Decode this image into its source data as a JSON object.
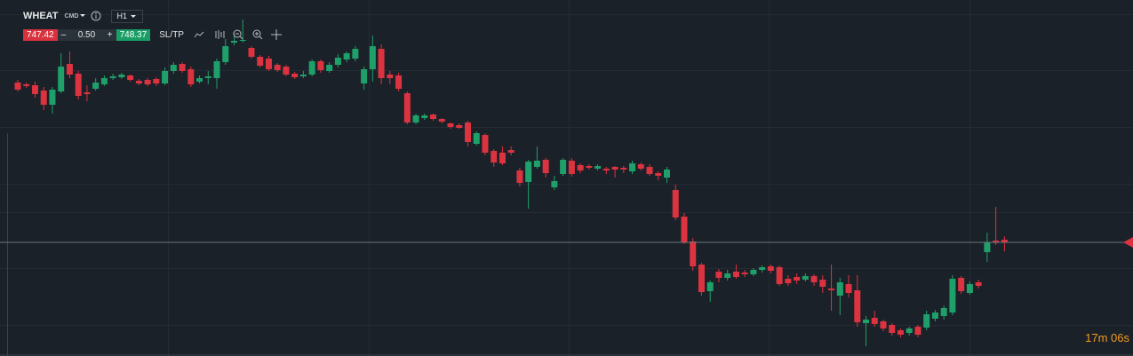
{
  "toolbar": {
    "symbol": "WHEAT",
    "symbol_type": "CMD",
    "timeframe": "H1",
    "sell_price": "747.42",
    "volume": "0.50",
    "buy_price": "748.37",
    "sltp": "SL/TP"
  },
  "countdown": {
    "minutes": "17m",
    "seconds": "06s"
  },
  "chart_data": {
    "type": "candlestick",
    "up_color": "#1fa06a",
    "down_color": "#dc3340",
    "ylim": [
      735.1,
      775.2
    ],
    "price_line": 747.9,
    "open": [
      765.9,
      765.7,
      765.6,
      765.0,
      763.4,
      764.9,
      768.0,
      766.9,
      764.8,
      765.2,
      765.7,
      766.4,
      766.5,
      766.7,
      766.1,
      766.2,
      766.3,
      765.8,
      767.2,
      768.0,
      767.4,
      766.0,
      766.4,
      766.4,
      768.2,
      770.4,
      770.6,
      769.8,
      768.8,
      768.6,
      767.9,
      767.7,
      766.9,
      766.6,
      766.8,
      768.3,
      767.2,
      767.9,
      768.5,
      768.6,
      765.8,
      767.4,
      769.7,
      766.8,
      766.7,
      764.7,
      761.4,
      761.9,
      762.3,
      761.8,
      761.3,
      761.1,
      761.4,
      759.0,
      760.0,
      758.2,
      758.0,
      758.3,
      756.0,
      754.7,
      756.4,
      757.2,
      754.1,
      755.6,
      757.1,
      756.6,
      756.5,
      756.2,
      756.2,
      756.4,
      756.3,
      755.9,
      756.7,
      756.4,
      755.7,
      755.2,
      753.8,
      750.8,
      748.0,
      745.4,
      742.4,
      744.6,
      743.9,
      744.6,
      744.5,
      744.3,
      744.8,
      745.2,
      745.1,
      743.8,
      744.0,
      743.7,
      744.1,
      743.7,
      742.7,
      741.9,
      743.2,
      742.5,
      738.8,
      739.4,
      739.0,
      738.6,
      738.0,
      737.7,
      738.4,
      738.3,
      739.3,
      739.6,
      740.0,
      743.9,
      742.2,
      743.4,
      746.8,
      748.1,
      748.2
    ],
    "high": [
      766.2,
      765.9,
      766.0,
      765.4,
      765.4,
      769.2,
      769.4,
      767.2,
      765.6,
      766.4,
      766.7,
      766.9,
      767.0,
      766.8,
      766.3,
      766.4,
      766.5,
      767.6,
      768.2,
      768.2,
      767.7,
      766.7,
      767.2,
      768.6,
      770.8,
      771.4,
      773.0,
      770.0,
      769.0,
      768.9,
      768.1,
      767.9,
      767.1,
      767.2,
      768.5,
      768.5,
      768.2,
      769.1,
      769.4,
      770.0,
      767.7,
      771.2,
      770.2,
      767.2,
      767.0,
      764.9,
      762.4,
      762.4,
      762.4,
      761.9,
      761.4,
      761.3,
      761.6,
      760.4,
      760.2,
      758.4,
      758.7,
      758.7,
      756.3,
      757.2,
      758.7,
      757.4,
      755.4,
      757.4,
      757.4,
      756.8,
      756.7,
      756.7,
      756.4,
      756.5,
      756.5,
      757.1,
      756.9,
      756.7,
      755.9,
      756.4,
      754.4,
      751.2,
      748.4,
      745.6,
      743.6,
      744.9,
      744.8,
      745.4,
      744.8,
      745.0,
      745.3,
      745.4,
      745.3,
      744.2,
      744.4,
      744.4,
      744.3,
      744.2,
      745.4,
      743.9,
      744.2,
      744.2,
      739.6,
      740.2,
      739.2,
      738.8,
      738.2,
      738.4,
      738.6,
      740.2,
      740.3,
      740.8,
      744.2,
      744.1,
      743.5,
      743.7,
      749.0,
      751.9,
      748.6
    ],
    "low": [
      764.9,
      765.3,
      764.2,
      762.8,
      762.4,
      764.7,
      766.4,
      764.0,
      763.8,
      765.0,
      765.5,
      766.2,
      766.3,
      766.0,
      765.6,
      765.5,
      765.5,
      765.6,
      766.9,
      767.0,
      765.4,
      765.8,
      765.7,
      765.2,
      767.9,
      770.1,
      770.4,
      768.6,
      767.6,
      767.2,
      767.1,
      766.6,
      766.3,
      766.4,
      766.6,
      767.0,
      767.0,
      767.6,
      768.2,
      768.3,
      765.1,
      766.0,
      765.7,
      765.7,
      764.9,
      761.2,
      761.2,
      761.7,
      761.6,
      761.3,
      760.7,
      760.7,
      758.7,
      758.8,
      757.7,
      756.4,
      756.6,
      757.7,
      754.2,
      751.7,
      756.2,
      755.2,
      753.8,
      755.4,
      755.3,
      755.7,
      756.1,
      756.0,
      755.6,
      755.2,
      755.7,
      755.6,
      756.0,
      755.4,
      754.9,
      754.6,
      750.4,
      747.7,
      744.7,
      741.9,
      741.2,
      743.4,
      743.6,
      743.8,
      744.0,
      744.1,
      744.5,
      744.4,
      743.0,
      743.0,
      743.2,
      743.5,
      743.0,
      742.2,
      740.2,
      739.7,
      741.7,
      738.4,
      736.2,
      738.4,
      737.9,
      737.4,
      737.2,
      737.4,
      737.2,
      738.0,
      739.0,
      739.2,
      739.7,
      742.1,
      742.0,
      742.7,
      745.7,
      747.6,
      746.9
    ],
    "close": [
      765.1,
      765.5,
      764.6,
      763.4,
      765.1,
      767.7,
      766.8,
      764.4,
      764.6,
      765.9,
      766.4,
      766.6,
      766.8,
      766.2,
      765.8,
      765.7,
      765.8,
      767.2,
      767.9,
      767.2,
      765.7,
      766.4,
      766.6,
      768.3,
      770.0,
      770.6,
      770.7,
      768.8,
      767.8,
      767.4,
      767.3,
      766.8,
      766.5,
      766.8,
      768.3,
      767.3,
      767.9,
      768.7,
      769.2,
      769.7,
      767.4,
      770.0,
      766.4,
      766.4,
      765.2,
      761.4,
      762.2,
      762.2,
      761.8,
      761.5,
      760.9,
      760.8,
      759.2,
      760.2,
      758.0,
      756.9,
      756.8,
      758.0,
      754.6,
      757.0,
      757.1,
      755.7,
      754.8,
      757.2,
      755.6,
      756.0,
      756.3,
      756.5,
      756.0,
      756.1,
      756.1,
      756.8,
      756.2,
      755.6,
      755.4,
      756.1,
      750.7,
      747.9,
      745.2,
      742.3,
      743.4,
      743.9,
      744.4,
      744.0,
      744.3,
      744.8,
      745.1,
      744.7,
      743.2,
      743.3,
      743.6,
      744.1,
      743.4,
      742.9,
      742.5,
      743.4,
      742.2,
      738.9,
      739.2,
      738.7,
      738.2,
      737.7,
      737.5,
      738.2,
      737.5,
      739.8,
      740.0,
      740.5,
      743.8,
      742.4,
      743.2,
      743.0,
      747.9,
      747.9,
      747.9
    ]
  }
}
